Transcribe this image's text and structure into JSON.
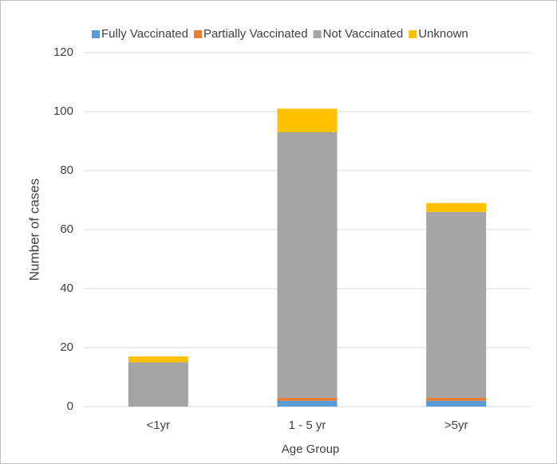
{
  "chart_data": {
    "type": "stacked_bar",
    "x_label": "Age Group",
    "y_label": "Number of cases",
    "categories": [
      "<1yr",
      "1 - 5 yr",
      ">5yr"
    ],
    "series": [
      {
        "name": "Fully Vaccinated",
        "color": "#5b9bd5",
        "values": [
          0,
          2,
          2
        ]
      },
      {
        "name": "Partially Vaccinated",
        "color": "#ed7d31",
        "values": [
          0,
          1,
          1
        ]
      },
      {
        "name": "Not Vaccinated",
        "color": "#a5a5a5",
        "values": [
          15,
          90,
          63
        ]
      },
      {
        "name": "Unknown",
        "color": "#ffc000",
        "values": [
          2,
          8,
          3
        ]
      }
    ],
    "ylim": [
      0,
      120
    ],
    "yticks": [
      0,
      20,
      40,
      60,
      80,
      100,
      120
    ],
    "grid": true,
    "legend": "top"
  }
}
